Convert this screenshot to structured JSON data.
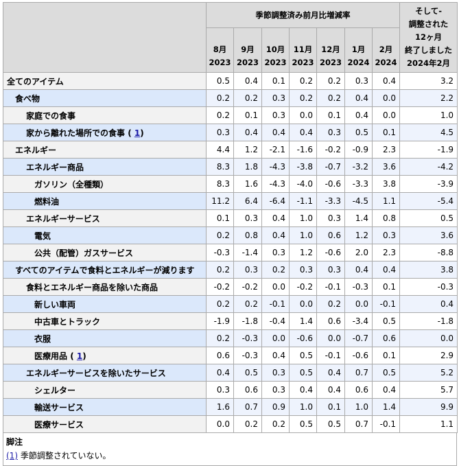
{
  "header": {
    "group_title": "季節調整済み前月比増減率",
    "last_col_lines": [
      "そして-",
      "調整された",
      "12ヶ月",
      "終了しました",
      "2024年2月"
    ],
    "months": [
      {
        "month": "8月",
        "year": "2023"
      },
      {
        "month": "9月",
        "year": "2023"
      },
      {
        "month": "10月",
        "year": "2023"
      },
      {
        "month": "11月",
        "year": "2023"
      },
      {
        "month": "12月",
        "year": "2023"
      },
      {
        "month": "1月",
        "year": "2024"
      },
      {
        "month": "2月",
        "year": "2024"
      }
    ]
  },
  "rows": [
    {
      "label": "全てのアイテム",
      "indent": 0,
      "values": [
        "0.5",
        "0.4",
        "0.1",
        "0.2",
        "0.2",
        "0.3",
        "0.4"
      ],
      "annual": "3.2"
    },
    {
      "label": "食べ物",
      "indent": 1,
      "values": [
        "0.2",
        "0.2",
        "0.3",
        "0.2",
        "0.2",
        "0.4",
        "0.0"
      ],
      "annual": "2.2"
    },
    {
      "label": "家庭での食事",
      "indent": 2,
      "values": [
        "0.2",
        "0.1",
        "0.3",
        "0.0",
        "0.1",
        "0.4",
        "0.0"
      ],
      "annual": "1.0"
    },
    {
      "label": "家から離れた場所での食事",
      "indent": 2,
      "footnote": "1",
      "values": [
        "0.3",
        "0.4",
        "0.4",
        "0.4",
        "0.3",
        "0.5",
        "0.1"
      ],
      "annual": "4.5"
    },
    {
      "label": "エネルギー",
      "indent": 1,
      "values": [
        "4.4",
        "1.2",
        "-2.1",
        "-1.6",
        "-0.2",
        "-0.9",
        "2.3"
      ],
      "annual": "-1.9"
    },
    {
      "label": "エネルギー商品",
      "indent": 2,
      "values": [
        "8.3",
        "1.8",
        "-4.3",
        "-3.8",
        "-0.7",
        "-3.2",
        "3.6"
      ],
      "annual": "-4.2"
    },
    {
      "label": "ガソリン（全種類）",
      "indent": 3,
      "values": [
        "8.3",
        "1.6",
        "-4.3",
        "-4.0",
        "-0.6",
        "-3.3",
        "3.8"
      ],
      "annual": "-3.9"
    },
    {
      "label": "燃料油",
      "indent": 3,
      "values": [
        "11.2",
        "6.4",
        "-6.4",
        "-1.1",
        "-3.3",
        "-4.5",
        "1.1"
      ],
      "annual": "-5.4"
    },
    {
      "label": "エネルギーサービス",
      "indent": 2,
      "values": [
        "0.1",
        "0.3",
        "0.4",
        "1.0",
        "0.3",
        "1.4",
        "0.8"
      ],
      "annual": "0.5"
    },
    {
      "label": "電気",
      "indent": 3,
      "values": [
        "0.2",
        "0.8",
        "0.4",
        "1.0",
        "0.6",
        "1.2",
        "0.3"
      ],
      "annual": "3.6"
    },
    {
      "label": "公共（配管）ガスサービス",
      "indent": 3,
      "values": [
        "-0.3",
        "-1.4",
        "0.3",
        "1.2",
        "-0.6",
        "2.0",
        "2.3"
      ],
      "annual": "-8.8"
    },
    {
      "label": "すべてのアイテムで食料とエネルギーが減ります",
      "indent": 1,
      "values": [
        "0.2",
        "0.3",
        "0.2",
        "0.3",
        "0.3",
        "0.4",
        "0.4"
      ],
      "annual": "3.8"
    },
    {
      "label": "食料とエネルギー商品を除いた商品",
      "indent": 2,
      "values": [
        "-0.2",
        "-0.2",
        "0.0",
        "-0.2",
        "-0.1",
        "-0.3",
        "0.1"
      ],
      "annual": "-0.3"
    },
    {
      "label": "新しい車両",
      "indent": 3,
      "values": [
        "0.2",
        "0.2",
        "-0.1",
        "0.0",
        "0.2",
        "0.0",
        "-0.1"
      ],
      "annual": "0.4"
    },
    {
      "label": "中古車とトラック",
      "indent": 3,
      "values": [
        "-1.9",
        "-1.8",
        "-0.4",
        "1.4",
        "0.6",
        "-3.4",
        "0.5"
      ],
      "annual": "-1.8"
    },
    {
      "label": "衣服",
      "indent": 3,
      "values": [
        "0.2",
        "-0.3",
        "0.0",
        "-0.6",
        "0.0",
        "-0.7",
        "0.6"
      ],
      "annual": "0.0"
    },
    {
      "label": "医療用品",
      "indent": 3,
      "footnote": "1",
      "values": [
        "0.6",
        "-0.3",
        "0.4",
        "0.5",
        "-0.1",
        "-0.6",
        "0.1"
      ],
      "annual": "2.9"
    },
    {
      "label": "エネルギーサービスを除いたサービス",
      "indent": 2,
      "values": [
        "0.4",
        "0.5",
        "0.3",
        "0.5",
        "0.4",
        "0.7",
        "0.5"
      ],
      "annual": "5.2"
    },
    {
      "label": "シェルター",
      "indent": 3,
      "values": [
        "0.3",
        "0.6",
        "0.3",
        "0.4",
        "0.4",
        "0.6",
        "0.4"
      ],
      "annual": "5.7"
    },
    {
      "label": "輸送サービス",
      "indent": 3,
      "values": [
        "1.6",
        "0.7",
        "0.9",
        "1.0",
        "0.1",
        "1.0",
        "1.4"
      ],
      "annual": "9.9"
    },
    {
      "label": "医療サービス",
      "indent": 3,
      "values": [
        "0.0",
        "0.2",
        "0.2",
        "0.5",
        "0.5",
        "0.7",
        "-0.1"
      ],
      "annual": "1.1"
    }
  ],
  "footnotes": {
    "title": "脚注",
    "items": [
      {
        "ref": "(1)",
        "text": "季節調整されていない。"
      }
    ]
  },
  "colors": {
    "header_bg": "#dcdcdc",
    "row_label_odd": "#f2f2f2",
    "row_label_even": "#dbe8fb",
    "row_value_even": "#eef3fd",
    "border": "#aaaaaa",
    "link": "#1a1aa6"
  }
}
